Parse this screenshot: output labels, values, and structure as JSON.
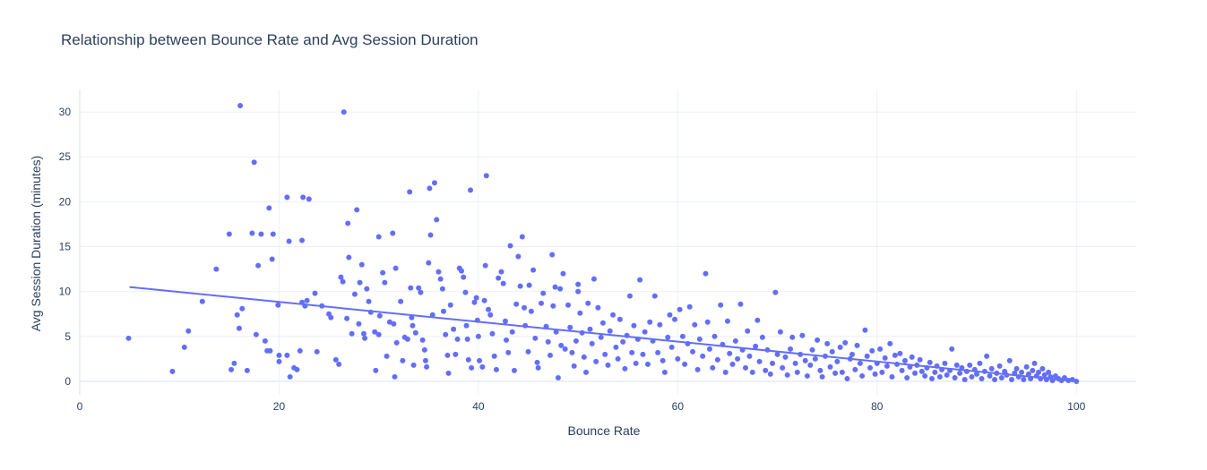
{
  "chart_data": {
    "type": "scatter",
    "title": "Relationship between Bounce Rate and Avg Session Duration",
    "xlabel": "Bounce Rate",
    "ylabel": "Avg Session Duration (minutes)",
    "xlim": [
      0,
      106
    ],
    "ylim": [
      -1.5,
      32.5
    ],
    "xticks": [
      0,
      20,
      40,
      60,
      80,
      100
    ],
    "yticks": [
      0,
      5,
      10,
      15,
      20,
      25,
      30
    ],
    "grid": true,
    "legend": "none",
    "color": "#636efa",
    "trendline": {
      "x": [
        5,
        100
      ],
      "y": [
        10.5,
        0.0
      ]
    },
    "points": [
      [
        4.9,
        4.8
      ],
      [
        9.3,
        1.1
      ],
      [
        10.5,
        3.8
      ],
      [
        10.9,
        5.6
      ],
      [
        12.3,
        8.9
      ],
      [
        13.7,
        12.5
      ],
      [
        15.0,
        16.4
      ],
      [
        15.2,
        1.3
      ],
      [
        15.5,
        2.0
      ],
      [
        15.8,
        7.4
      ],
      [
        16.0,
        5.9
      ],
      [
        16.1,
        30.7
      ],
      [
        16.3,
        8.1
      ],
      [
        16.8,
        1.2
      ],
      [
        17.3,
        16.5
      ],
      [
        17.5,
        24.4
      ],
      [
        17.7,
        5.2
      ],
      [
        17.9,
        12.9
      ],
      [
        18.2,
        16.4
      ],
      [
        18.6,
        4.5
      ],
      [
        18.8,
        3.4
      ],
      [
        19.0,
        19.3
      ],
      [
        19.1,
        3.4
      ],
      [
        19.3,
        13.6
      ],
      [
        19.4,
        16.4
      ],
      [
        19.9,
        8.5
      ],
      [
        20.0,
        2.9
      ],
      [
        20.0,
        2.2
      ],
      [
        20.8,
        20.5
      ],
      [
        20.8,
        2.9
      ],
      [
        21.0,
        15.6
      ],
      [
        21.1,
        0.5
      ],
      [
        21.5,
        1.5
      ],
      [
        21.8,
        1.3
      ],
      [
        22.1,
        3.4
      ],
      [
        22.3,
        8.8
      ],
      [
        22.3,
        15.7
      ],
      [
        22.4,
        20.5
      ],
      [
        22.6,
        8.4
      ],
      [
        22.8,
        9.0
      ],
      [
        23.0,
        20.3
      ],
      [
        23.6,
        9.8
      ],
      [
        23.8,
        3.3
      ],
      [
        24.3,
        8.4
      ],
      [
        25.0,
        7.5
      ],
      [
        25.2,
        7.1
      ],
      [
        25.7,
        2.4
      ],
      [
        26.0,
        1.9
      ],
      [
        26.2,
        11.6
      ],
      [
        26.4,
        11.1
      ],
      [
        26.5,
        30.0
      ],
      [
        26.8,
        7.0
      ],
      [
        26.9,
        17.6
      ],
      [
        27.0,
        13.8
      ],
      [
        27.3,
        5.3
      ],
      [
        27.6,
        9.7
      ],
      [
        27.8,
        19.1
      ],
      [
        28.0,
        6.4
      ],
      [
        28.1,
        11.0
      ],
      [
        28.3,
        13.0
      ],
      [
        28.5,
        5.3
      ],
      [
        28.6,
        4.8
      ],
      [
        28.8,
        10.3
      ],
      [
        29.0,
        8.9
      ],
      [
        29.2,
        7.7
      ],
      [
        29.6,
        5.5
      ],
      [
        29.7,
        1.2
      ],
      [
        30.0,
        16.1
      ],
      [
        30.0,
        5.2
      ],
      [
        30.1,
        7.3
      ],
      [
        30.4,
        12.1
      ],
      [
        30.6,
        11.0
      ],
      [
        30.8,
        2.8
      ],
      [
        31.1,
        6.6
      ],
      [
        31.4,
        16.5
      ],
      [
        31.5,
        6.4
      ],
      [
        31.6,
        0.5
      ],
      [
        31.7,
        12.6
      ],
      [
        31.8,
        4.3
      ],
      [
        32.2,
        8.9
      ],
      [
        32.4,
        2.3
      ],
      [
        32.6,
        4.9
      ],
      [
        32.9,
        4.7
      ],
      [
        33.1,
        21.1
      ],
      [
        33.2,
        10.4
      ],
      [
        33.3,
        7.1
      ],
      [
        33.4,
        6.2
      ],
      [
        33.5,
        1.8
      ],
      [
        33.7,
        5.4
      ],
      [
        34.0,
        10.4
      ],
      [
        34.2,
        9.9
      ],
      [
        34.4,
        4.6
      ],
      [
        34.6,
        3.5
      ],
      [
        34.7,
        2.3
      ],
      [
        34.8,
        1.6
      ],
      [
        35.0,
        13.2
      ],
      [
        35.1,
        21.5
      ],
      [
        35.2,
        16.3
      ],
      [
        35.4,
        7.4
      ],
      [
        35.6,
        22.1
      ],
      [
        35.8,
        18.0
      ],
      [
        36.0,
        12.2
      ],
      [
        36.2,
        11.4
      ],
      [
        36.4,
        10.3
      ],
      [
        36.5,
        7.8
      ],
      [
        36.7,
        5.2
      ],
      [
        36.9,
        2.9
      ],
      [
        37.0,
        0.9
      ],
      [
        37.2,
        8.5
      ],
      [
        37.5,
        5.8
      ],
      [
        37.7,
        3.0
      ],
      [
        37.9,
        4.7
      ],
      [
        38.1,
        12.6
      ],
      [
        38.3,
        12.3
      ],
      [
        38.5,
        11.6
      ],
      [
        38.7,
        9.9
      ],
      [
        38.8,
        6.2
      ],
      [
        38.9,
        4.7
      ],
      [
        39.0,
        2.4
      ],
      [
        39.2,
        21.3
      ],
      [
        39.3,
        1.5
      ],
      [
        39.6,
        8.8
      ],
      [
        39.8,
        9.3
      ],
      [
        39.9,
        6.8
      ],
      [
        40.0,
        5.0
      ],
      [
        40.1,
        2.3
      ],
      [
        40.4,
        1.6
      ],
      [
        40.6,
        9.0
      ],
      [
        40.7,
        12.9
      ],
      [
        40.8,
        22.9
      ],
      [
        41.0,
        8.0
      ],
      [
        41.2,
        7.4
      ],
      [
        41.4,
        5.3
      ],
      [
        41.6,
        2.8
      ],
      [
        41.8,
        1.3
      ],
      [
        42.0,
        11.5
      ],
      [
        42.3,
        12.2
      ],
      [
        42.5,
        10.9
      ],
      [
        42.7,
        6.7
      ],
      [
        42.8,
        4.6
      ],
      [
        43.0,
        3.2
      ],
      [
        43.2,
        15.1
      ],
      [
        43.4,
        5.5
      ],
      [
        43.6,
        1.2
      ],
      [
        43.8,
        8.6
      ],
      [
        44.0,
        13.9
      ],
      [
        44.2,
        10.6
      ],
      [
        44.4,
        16.1
      ],
      [
        44.6,
        8.2
      ],
      [
        44.7,
        6.2
      ],
      [
        45.0,
        3.3
      ],
      [
        45.1,
        10.7
      ],
      [
        45.3,
        7.8
      ],
      [
        45.5,
        12.4
      ],
      [
        45.7,
        4.8
      ],
      [
        45.9,
        2.1
      ],
      [
        46.0,
        1.5
      ],
      [
        46.3,
        8.7
      ],
      [
        46.5,
        9.8
      ],
      [
        46.8,
        6.1
      ],
      [
        47.0,
        4.4
      ],
      [
        47.2,
        2.9
      ],
      [
        47.4,
        14.1
      ],
      [
        47.5,
        8.4
      ],
      [
        47.7,
        10.5
      ],
      [
        47.8,
        5.5
      ],
      [
        48.0,
        0.4
      ],
      [
        48.2,
        10.3
      ],
      [
        48.3,
        4.0
      ],
      [
        48.5,
        12.0
      ],
      [
        48.7,
        3.6
      ],
      [
        49.0,
        8.5
      ],
      [
        49.2,
        6.0
      ],
      [
        49.4,
        3.2
      ],
      [
        49.6,
        1.7
      ],
      [
        49.8,
        4.5
      ],
      [
        50.0,
        10.8
      ],
      [
        50.0,
        10.0
      ],
      [
        50.2,
        7.6
      ],
      [
        50.4,
        5.4
      ],
      [
        50.6,
        2.7
      ],
      [
        50.8,
        1.0
      ],
      [
        51.0,
        8.7
      ],
      [
        51.2,
        5.8
      ],
      [
        51.4,
        4.2
      ],
      [
        51.6,
        11.4
      ],
      [
        51.8,
        2.2
      ],
      [
        52.0,
        8.2
      ],
      [
        52.3,
        4.9
      ],
      [
        52.5,
        6.5
      ],
      [
        52.7,
        3.0
      ],
      [
        53.0,
        1.8
      ],
      [
        53.2,
        5.6
      ],
      [
        53.5,
        7.4
      ],
      [
        53.8,
        3.8
      ],
      [
        54.0,
        2.5
      ],
      [
        54.2,
        6.9
      ],
      [
        54.5,
        4.4
      ],
      [
        54.7,
        1.4
      ],
      [
        54.9,
        5.1
      ],
      [
        55.2,
        9.5
      ],
      [
        55.4,
        3.2
      ],
      [
        55.6,
        6.2
      ],
      [
        55.8,
        2.0
      ],
      [
        56.0,
        4.7
      ],
      [
        56.2,
        11.3
      ],
      [
        56.5,
        3.0
      ],
      [
        56.7,
        5.5
      ],
      [
        57.0,
        1.9
      ],
      [
        57.2,
        6.6
      ],
      [
        57.5,
        4.5
      ],
      [
        57.7,
        9.5
      ],
      [
        58.0,
        3.2
      ],
      [
        58.2,
        6.3
      ],
      [
        58.5,
        2.3
      ],
      [
        58.7,
        1.0
      ],
      [
        59.0,
        4.9
      ],
      [
        59.2,
        7.4
      ],
      [
        59.4,
        3.8
      ],
      [
        59.7,
        6.9
      ],
      [
        60.0,
        2.5
      ],
      [
        60.2,
        8.0
      ],
      [
        60.5,
        5.0
      ],
      [
        60.7,
        1.9
      ],
      [
        61.0,
        4.2
      ],
      [
        61.2,
        8.3
      ],
      [
        61.5,
        3.3
      ],
      [
        61.7,
        6.3
      ],
      [
        62.0,
        1.3
      ],
      [
        62.2,
        4.7
      ],
      [
        62.5,
        2.8
      ],
      [
        62.8,
        12.0
      ],
      [
        63.0,
        6.6
      ],
      [
        63.2,
        3.6
      ],
      [
        63.5,
        1.5
      ],
      [
        63.7,
        5.0
      ],
      [
        64.0,
        2.4
      ],
      [
        64.3,
        8.5
      ],
      [
        64.5,
        4.1
      ],
      [
        64.8,
        1.0
      ],
      [
        65.0,
        6.7
      ],
      [
        65.2,
        3.1
      ],
      [
        65.5,
        1.9
      ],
      [
        65.8,
        4.5
      ],
      [
        66.0,
        2.5
      ],
      [
        66.3,
        8.6
      ],
      [
        66.5,
        3.5
      ],
      [
        66.8,
        1.5
      ],
      [
        67.0,
        5.6
      ],
      [
        67.2,
        2.8
      ],
      [
        67.5,
        1.0
      ],
      [
        67.8,
        3.9
      ],
      [
        68.0,
        6.8
      ],
      [
        68.2,
        2.2
      ],
      [
        68.5,
        4.9
      ],
      [
        68.8,
        1.2
      ],
      [
        69.0,
        3.5
      ],
      [
        69.3,
        0.8
      ],
      [
        69.5,
        2.0
      ],
      [
        69.8,
        9.9
      ],
      [
        70.0,
        3.0
      ],
      [
        70.3,
        5.5
      ],
      [
        70.5,
        1.5
      ],
      [
        70.8,
        2.7
      ],
      [
        71.0,
        0.7
      ],
      [
        71.3,
        3.6
      ],
      [
        71.5,
        4.9
      ],
      [
        71.8,
        2.0
      ],
      [
        72.0,
        1.0
      ],
      [
        72.3,
        3.0
      ],
      [
        72.5,
        5.1
      ],
      [
        72.8,
        2.3
      ],
      [
        73.0,
        0.6
      ],
      [
        73.3,
        1.8
      ],
      [
        73.5,
        3.5
      ],
      [
        73.8,
        2.5
      ],
      [
        74.0,
        4.6
      ],
      [
        74.3,
        1.2
      ],
      [
        74.5,
        0.5
      ],
      [
        74.8,
        2.8
      ],
      [
        75.0,
        4.2
      ],
      [
        75.3,
        1.6
      ],
      [
        75.5,
        3.3
      ],
      [
        75.8,
        0.9
      ],
      [
        76.0,
        2.2
      ],
      [
        76.3,
        3.8
      ],
      [
        76.5,
        1.0
      ],
      [
        76.8,
        4.3
      ],
      [
        77.0,
        0.3
      ],
      [
        77.3,
        2.5
      ],
      [
        77.5,
        3.0
      ],
      [
        77.8,
        1.3
      ],
      [
        78.0,
        4.0
      ],
      [
        78.3,
        2.0
      ],
      [
        78.5,
        0.6
      ],
      [
        78.8,
        5.7
      ],
      [
        79.0,
        2.8
      ],
      [
        79.3,
        1.5
      ],
      [
        79.5,
        3.4
      ],
      [
        79.8,
        0.8
      ],
      [
        80.0,
        2.0
      ],
      [
        80.3,
        3.6
      ],
      [
        80.5,
        1.0
      ],
      [
        80.8,
        2.6
      ],
      [
        81.0,
        1.7
      ],
      [
        81.3,
        4.2
      ],
      [
        81.5,
        0.5
      ],
      [
        81.8,
        2.9
      ],
      [
        82.0,
        1.9
      ],
      [
        82.3,
        3.1
      ],
      [
        82.5,
        1.2
      ],
      [
        82.8,
        2.3
      ],
      [
        83.0,
        0.4
      ],
      [
        83.3,
        1.6
      ],
      [
        83.5,
        2.7
      ],
      [
        83.8,
        0.9
      ],
      [
        84.0,
        1.8
      ],
      [
        84.3,
        2.4
      ],
      [
        84.5,
        1.1
      ],
      [
        84.8,
        0.6
      ],
      [
        85.0,
        1.5
      ],
      [
        85.3,
        2.1
      ],
      [
        85.5,
        0.3
      ],
      [
        85.8,
        1.0
      ],
      [
        86.0,
        1.7
      ],
      [
        86.3,
        0.5
      ],
      [
        86.5,
        1.3
      ],
      [
        86.8,
        2.0
      ],
      [
        87.0,
        0.7
      ],
      [
        87.3,
        1.2
      ],
      [
        87.5,
        3.6
      ],
      [
        87.8,
        0.4
      ],
      [
        88.0,
        1.8
      ],
      [
        88.3,
        0.9
      ],
      [
        88.5,
        1.5
      ],
      [
        88.8,
        0.2
      ],
      [
        89.0,
        1.1
      ],
      [
        89.3,
        1.8
      ],
      [
        89.5,
        0.5
      ],
      [
        89.8,
        1.3
      ],
      [
        90.0,
        0.8
      ],
      [
        90.3,
        2.0
      ],
      [
        90.5,
        0.3
      ],
      [
        90.8,
        1.1
      ],
      [
        91.0,
        2.8
      ],
      [
        91.3,
        0.6
      ],
      [
        91.5,
        1.4
      ],
      [
        91.8,
        0.2
      ],
      [
        92.0,
        0.9
      ],
      [
        92.3,
        1.7
      ],
      [
        92.5,
        0.4
      ],
      [
        92.8,
        1.1
      ],
      [
        93.0,
        0.7
      ],
      [
        93.3,
        2.3
      ],
      [
        93.5,
        0.2
      ],
      [
        93.8,
        0.9
      ],
      [
        94.0,
        1.4
      ],
      [
        94.2,
        0.5
      ],
      [
        94.5,
        1.0
      ],
      [
        94.7,
        0.2
      ],
      [
        95.0,
        1.6
      ],
      [
        95.2,
        0.8
      ],
      [
        95.4,
        0.3
      ],
      [
        95.6,
        1.2
      ],
      [
        95.8,
        2.0
      ],
      [
        96.0,
        0.6
      ],
      [
        96.2,
        1.0
      ],
      [
        96.4,
        0.3
      ],
      [
        96.6,
        1.4
      ],
      [
        96.8,
        0.7
      ],
      [
        97.0,
        0.2
      ],
      [
        97.2,
        1.0
      ],
      [
        97.4,
        0.5
      ],
      [
        97.6,
        0.1
      ],
      [
        97.9,
        0.6
      ],
      [
        98.2,
        0.3
      ],
      [
        98.5,
        0.1
      ],
      [
        98.8,
        0.4
      ],
      [
        99.2,
        0.1
      ],
      [
        99.6,
        0.2
      ],
      [
        100.0,
        0.0
      ]
    ]
  }
}
